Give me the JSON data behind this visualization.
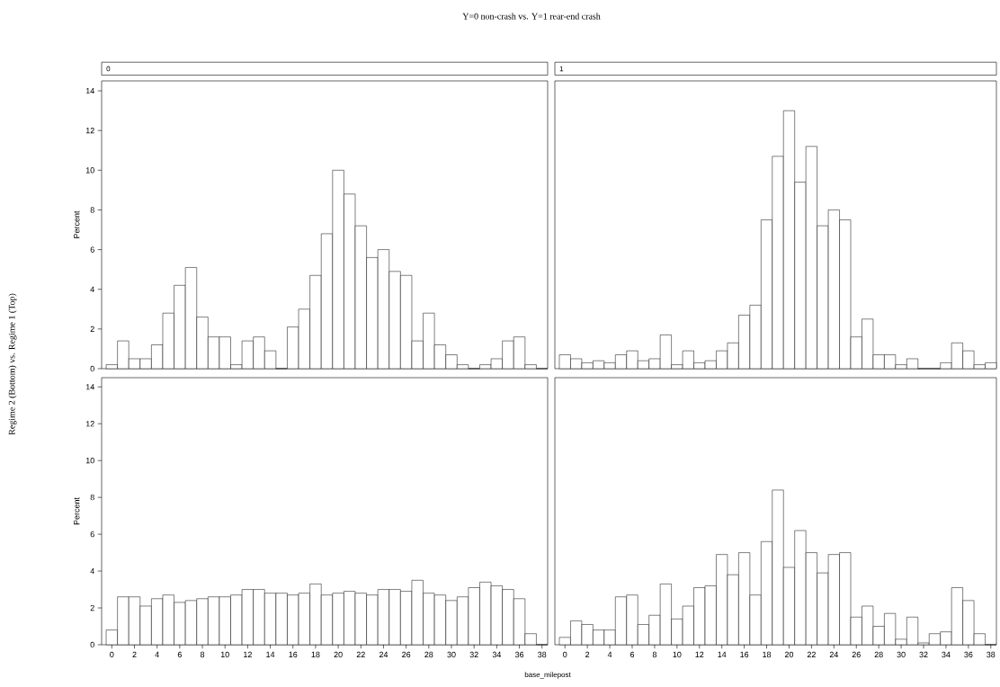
{
  "chart_data": [
    {
      "type": "histogram",
      "title": "0",
      "ylabel": "Percent",
      "annotations": [
        "Y=0 non-crash vs. Y=1 rear-end crash",
        "Regime 2 (Bottom) vs. Regime 1 (Top)"
      ],
      "color": "#ffffff",
      "tick_labels": "y",
      "xlim": [
        -0.9,
        38.5
      ],
      "ylim": [
        0,
        14.5
      ],
      "xticks": [
        0,
        2,
        4,
        6,
        8,
        10,
        12,
        14,
        16,
        18,
        20,
        22,
        24,
        26,
        28,
        30,
        32,
        34,
        36,
        38
      ],
      "yticks": [
        0,
        2,
        4,
        6,
        8,
        10,
        12,
        14
      ],
      "bins": [
        -0.5,
        0.5,
        1.5,
        2.5,
        3.5,
        4.5,
        5.5,
        6.5,
        7.5,
        8.5,
        9.5,
        10.5,
        11.5,
        12.5,
        13.5,
        14.5,
        15.5,
        16.5,
        17.5,
        18.5,
        19.5,
        20.5,
        21.5,
        22.5,
        23.5,
        24.5,
        25.5,
        26.5,
        27.5,
        28.5,
        29.5,
        30.5,
        31.5,
        32.5,
        33.5,
        34.5,
        35.5,
        36.5,
        37.5,
        38.5
      ],
      "values": [
        0.2,
        1.4,
        0.5,
        0.5,
        1.2,
        2.8,
        4.2,
        5.1,
        2.6,
        1.6,
        1.6,
        0.2,
        1.4,
        1.6,
        0.9,
        0,
        2.1,
        3.0,
        4.7,
        6.8,
        10.0,
        8.8,
        7.2,
        5.6,
        6.0,
        4.9,
        4.7,
        1.4,
        2.8,
        1.2,
        0.7,
        0.2,
        0,
        0.2,
        0.5,
        1.4,
        1.6,
        0.2,
        0
      ]
    },
    {
      "type": "histogram",
      "title": "1",
      "color": "#ffffff",
      "tick_labels": false,
      "xlim": [
        -0.9,
        38.5
      ],
      "ylim": [
        0,
        14.5
      ],
      "xticks": [
        0,
        2,
        4,
        6,
        8,
        10,
        12,
        14,
        16,
        18,
        20,
        22,
        24,
        26,
        28,
        30,
        32,
        34,
        36,
        38
      ],
      "yticks": [
        0,
        2,
        4,
        6,
        8,
        10,
        12,
        14
      ],
      "bins": [
        -0.5,
        0.5,
        1.5,
        2.5,
        3.5,
        4.5,
        5.5,
        6.5,
        7.5,
        8.5,
        9.5,
        10.5,
        11.5,
        12.5,
        13.5,
        14.5,
        15.5,
        16.5,
        17.5,
        18.5,
        19.5,
        20.5,
        21.5,
        22.5,
        23.5,
        24.5,
        25.5,
        26.5,
        27.5,
        28.5,
        29.5,
        30.5,
        31.5,
        32.5,
        33.5,
        34.5,
        35.5,
        36.5,
        37.5,
        38.5
      ],
      "values": [
        0.7,
        0.5,
        0.3,
        0.4,
        0.3,
        0.7,
        0.9,
        0.4,
        0.5,
        1.7,
        0.2,
        0.9,
        0.3,
        0.4,
        0.9,
        1.3,
        2.7,
        3.2,
        7.5,
        10.7,
        13.0,
        9.4,
        11.2,
        7.2,
        8.0,
        7.5,
        1.6,
        2.5,
        0.7,
        0.7,
        0.2,
        0.5,
        0,
        0,
        0.3,
        1.3,
        0.9,
        0.2,
        0.3
      ]
    },
    {
      "type": "histogram",
      "ylabel": "Percent",
      "xlabel": "base_milepost",
      "color": "#ffffff",
      "xlim": [
        -0.9,
        38.5
      ],
      "ylim": [
        0,
        14.5
      ],
      "xticks": [
        0,
        2,
        4,
        6,
        8,
        10,
        12,
        14,
        16,
        18,
        20,
        22,
        24,
        26,
        28,
        30,
        32,
        34,
        36,
        38
      ],
      "yticks": [
        0,
        2,
        4,
        6,
        8,
        10,
        12,
        14
      ],
      "bins": [
        -0.5,
        0.5,
        1.5,
        2.5,
        3.5,
        4.5,
        5.5,
        6.5,
        7.5,
        8.5,
        9.5,
        10.5,
        11.5,
        12.5,
        13.5,
        14.5,
        15.5,
        16.5,
        17.5,
        18.5,
        19.5,
        20.5,
        21.5,
        22.5,
        23.5,
        24.5,
        25.5,
        26.5,
        27.5,
        28.5,
        29.5,
        30.5,
        31.5,
        32.5,
        33.5,
        34.5,
        35.5,
        36.5,
        37.5,
        38.5
      ],
      "values": [
        0.8,
        2.6,
        2.6,
        2.1,
        2.5,
        2.7,
        2.3,
        2.4,
        2.5,
        2.6,
        2.6,
        2.7,
        3.0,
        3.0,
        2.8,
        2.8,
        2.7,
        2.8,
        3.3,
        2.7,
        2.8,
        2.9,
        2.8,
        2.7,
        3.0,
        3.0,
        2.9,
        3.5,
        2.8,
        2.7,
        2.4,
        2.6,
        3.1,
        3.4,
        3.2,
        3.0,
        2.5,
        0.6,
        0
      ]
    },
    {
      "type": "histogram",
      "color": "#ffffff",
      "tick_labels": "x",
      "xlim": [
        -0.9,
        38.5
      ],
      "ylim": [
        0,
        14.5
      ],
      "xticks": [
        0,
        2,
        4,
        6,
        8,
        10,
        12,
        14,
        16,
        18,
        20,
        22,
        24,
        26,
        28,
        30,
        32,
        34,
        36,
        38
      ],
      "yticks": [
        0,
        2,
        4,
        6,
        8,
        10,
        12,
        14
      ],
      "bins": [
        -0.5,
        0.5,
        1.5,
        2.5,
        3.5,
        4.5,
        5.5,
        6.5,
        7.5,
        8.5,
        9.5,
        10.5,
        11.5,
        12.5,
        13.5,
        14.5,
        15.5,
        16.5,
        17.5,
        18.5,
        19.5,
        20.5,
        21.5,
        22.5,
        23.5,
        24.5,
        25.5,
        26.5,
        27.5,
        28.5,
        29.5,
        30.5,
        31.5,
        32.5,
        33.5,
        34.5,
        35.5,
        36.5,
        37.5,
        38.5
      ],
      "values": [
        0.4,
        1.3,
        1.1,
        0.8,
        0.8,
        2.6,
        2.7,
        1.1,
        1.6,
        3.3,
        1.4,
        2.1,
        3.1,
        3.2,
        4.9,
        3.8,
        5.0,
        2.7,
        5.6,
        8.4,
        4.2,
        6.2,
        5.0,
        3.9,
        4.9,
        5.0,
        1.5,
        2.1,
        1.0,
        1.7,
        0.3,
        1.5,
        0.1,
        0.6,
        0.7,
        3.1,
        2.4,
        0.6,
        0
      ]
    }
  ]
}
